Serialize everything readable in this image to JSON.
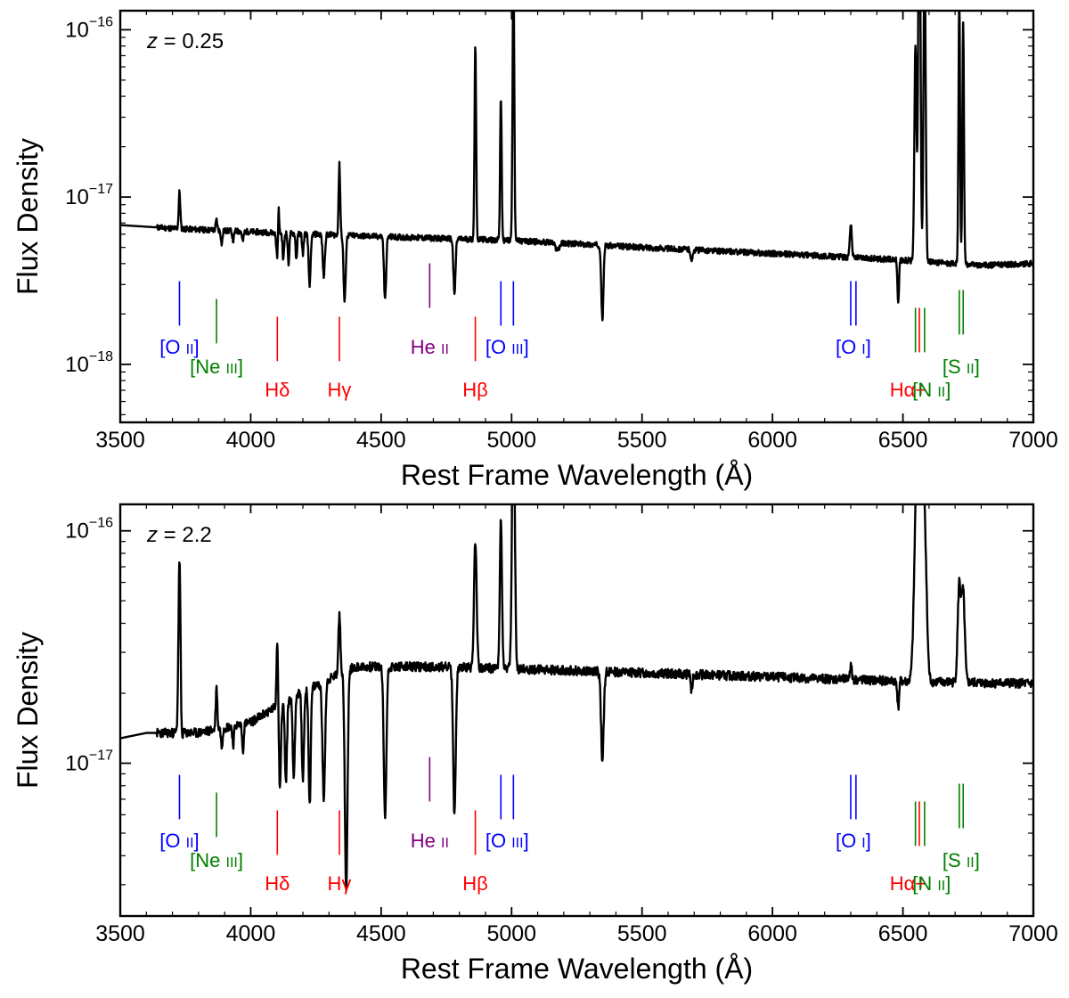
{
  "chart_data": [
    {
      "type": "line",
      "annotation": {
        "var": "z",
        "eq": " = 0.25"
      },
      "xlabel": "Rest Frame Wavelength (Å)",
      "ylabel": "Flux Density",
      "xlim": [
        3500,
        7000
      ],
      "ylim": [
        4.5e-19,
        1.3e-16
      ],
      "yscale": "log",
      "xticks": [
        3500,
        4000,
        4500,
        5000,
        5500,
        6000,
        6500,
        7000
      ],
      "yticks": [
        {
          "value": 1e-16,
          "base": "10",
          "exp": "−16"
        },
        {
          "value": 1e-17,
          "base": "10",
          "exp": "−17"
        },
        {
          "value": 1e-18,
          "base": "10",
          "exp": "−18"
        }
      ],
      "continuum": [
        [
          3500,
          6.8e-18
        ],
        [
          3700,
          6.5e-18
        ],
        [
          4000,
          6.2e-18
        ],
        [
          4500,
          5.8e-18
        ],
        [
          5000,
          5.5e-18
        ],
        [
          5500,
          5e-18
        ],
        [
          6000,
          4.6e-18
        ],
        [
          6500,
          4.2e-18
        ],
        [
          6800,
          3.9e-18
        ],
        [
          7000,
          4e-18
        ]
      ],
      "features": [
        {
          "x": 3727,
          "a": 0.22,
          "w": 3
        },
        {
          "x": 3869,
          "a": 0.06,
          "w": 3
        },
        {
          "x": 3889,
          "a": -0.08,
          "w": 3
        },
        {
          "x": 3933,
          "a": -0.06,
          "w": 3
        },
        {
          "x": 3970,
          "a": -0.06,
          "w": 3
        },
        {
          "x": 4102,
          "a": -0.14,
          "w": 4
        },
        {
          "x": 4107,
          "a": 0.2,
          "w": 2
        },
        {
          "x": 4125,
          "a": -0.16,
          "w": 3
        },
        {
          "x": 4145,
          "a": -0.18,
          "w": 3
        },
        {
          "x": 4175,
          "a": -0.15,
          "w": 3
        },
        {
          "x": 4200,
          "a": -0.12,
          "w": 3
        },
        {
          "x": 4226,
          "a": -0.3,
          "w": 4
        },
        {
          "x": 4280,
          "a": -0.25,
          "w": 4
        },
        {
          "x": 4340,
          "a": 0.42,
          "w": 3
        },
        {
          "x": 4360,
          "a": -0.4,
          "w": 4
        },
        {
          "x": 4515,
          "a": -0.38,
          "w": 4
        },
        {
          "x": 4781,
          "a": -0.33,
          "w": 4
        },
        {
          "x": 4861,
          "a": 1.18,
          "w": 3
        },
        {
          "x": 4959,
          "a": 0.85,
          "w": 3
        },
        {
          "x": 5007,
          "a": 1.67,
          "w": 3.2
        },
        {
          "x": 5175,
          "a": -0.04,
          "w": 8
        },
        {
          "x": 5348,
          "a": -0.45,
          "w": 4
        },
        {
          "x": 5690,
          "a": -0.08,
          "w": 3
        },
        {
          "x": 6300,
          "a": 0.2,
          "w": 4
        },
        {
          "x": 6482,
          "a": -0.25,
          "w": 3
        },
        {
          "x": 6548,
          "a": 1.3,
          "w": 4
        },
        {
          "x": 6563,
          "a": 2.7,
          "w": 4
        },
        {
          "x": 6583,
          "a": 1.95,
          "w": 4
        },
        {
          "x": 6716,
          "a": 1.6,
          "w": 3
        },
        {
          "x": 6731,
          "a": 1.45,
          "w": 3
        }
      ],
      "noise": 0.035,
      "seed": 11
    },
    {
      "type": "line",
      "annotation": {
        "var": "z",
        "eq": " = 2.2"
      },
      "xlabel": "Rest Frame Wavelength (Å)",
      "ylabel": "Flux Density",
      "xlim": [
        3500,
        7000
      ],
      "ylim": [
        2.2e-18,
        1.3e-16
      ],
      "yscale": "log",
      "xticks": [
        3500,
        4000,
        4500,
        5000,
        5500,
        6000,
        6500,
        7000
      ],
      "yticks": [
        {
          "value": 1e-16,
          "base": "10",
          "exp": "−16"
        },
        {
          "value": 1e-17,
          "base": "10",
          "exp": "−17"
        }
      ],
      "continuum": [
        [
          3500,
          1.28e-17
        ],
        [
          3600,
          1.35e-17
        ],
        [
          3800,
          1.35e-17
        ],
        [
          4000,
          1.5e-17
        ],
        [
          4150,
          1.9e-17
        ],
        [
          4300,
          2.3e-17
        ],
        [
          4400,
          2.6e-17
        ],
        [
          4700,
          2.6e-17
        ],
        [
          5000,
          2.55e-17
        ],
        [
          5500,
          2.45e-17
        ],
        [
          6000,
          2.35e-17
        ],
        [
          6500,
          2.25e-17
        ],
        [
          7000,
          2.2e-17
        ]
      ],
      "features": [
        {
          "x": 3727,
          "a": 0.75,
          "w": 4
        },
        {
          "x": 3734,
          "a": -0.06,
          "w": 3
        },
        {
          "x": 3869,
          "a": 0.18,
          "w": 3
        },
        {
          "x": 3889,
          "a": -0.08,
          "w": 3
        },
        {
          "x": 3933,
          "a": -0.08,
          "w": 3
        },
        {
          "x": 3970,
          "a": -0.12,
          "w": 3
        },
        {
          "x": 4102,
          "a": 0.3,
          "w": 3
        },
        {
          "x": 4112,
          "a": -0.35,
          "w": 4
        },
        {
          "x": 4135,
          "a": -0.35,
          "w": 4
        },
        {
          "x": 4165,
          "a": -0.35,
          "w": 4
        },
        {
          "x": 4200,
          "a": -0.38,
          "w": 4
        },
        {
          "x": 4226,
          "a": -0.5,
          "w": 4
        },
        {
          "x": 4280,
          "a": -0.5,
          "w": 5
        },
        {
          "x": 4340,
          "a": 0.25,
          "w": 4
        },
        {
          "x": 4366,
          "a": -0.95,
          "w": 5
        },
        {
          "x": 4515,
          "a": -0.65,
          "w": 5
        },
        {
          "x": 4781,
          "a": -0.63,
          "w": 5
        },
        {
          "x": 4861,
          "a": 0.55,
          "w": 5
        },
        {
          "x": 4959,
          "a": 0.65,
          "w": 4
        },
        {
          "x": 5007,
          "a": 1.25,
          "w": 5
        },
        {
          "x": 5348,
          "a": -0.38,
          "w": 5
        },
        {
          "x": 5690,
          "a": -0.08,
          "w": 3
        },
        {
          "x": 6300,
          "a": 0.06,
          "w": 4
        },
        {
          "x": 6482,
          "a": -0.12,
          "w": 3
        },
        {
          "x": 6548,
          "a": 0.35,
          "w": 8
        },
        {
          "x": 6563,
          "a": 1.3,
          "w": 10
        },
        {
          "x": 6583,
          "a": 0.6,
          "w": 8
        },
        {
          "x": 6716,
          "a": 0.42,
          "w": 6
        },
        {
          "x": 6731,
          "a": 0.38,
          "w": 6
        }
      ],
      "noise": 0.04,
      "seed": 23
    }
  ],
  "line_markers": [
    {
      "name": "[O II]",
      "color": "#0000ff",
      "xs": [
        3727
      ],
      "y0": 0.0,
      "y1": 1.0,
      "label_parts": [
        "[O ",
        "II",
        "]"
      ],
      "label_x": 3727,
      "label_row": 0
    },
    {
      "name": "[Ne III]",
      "color": "#008000",
      "xs": [
        3869
      ],
      "y0": -0.4,
      "y1": 0.6,
      "label_parts": [
        "[Ne ",
        "III",
        "]"
      ],
      "label_x": 3869,
      "label_row": 1
    },
    {
      "name": "Hδ",
      "color": "#ff0000",
      "xs": [
        4102
      ],
      "y0": -0.8,
      "y1": 0.2,
      "label_parts": [
        "Hδ"
      ],
      "label_x": 4102,
      "label_row": 2
    },
    {
      "name": "Hγ",
      "color": "#ff0000",
      "xs": [
        4340
      ],
      "y0": -0.8,
      "y1": 0.2,
      "label_parts": [
        "Hγ"
      ],
      "label_x": 4340,
      "label_row": 2
    },
    {
      "name": "He II",
      "color": "#800080",
      "xs": [
        4686
      ],
      "y0": 0.4,
      "y1": 1.4,
      "label_parts": [
        "He ",
        "II"
      ],
      "label_x": 4686,
      "label_row": 3
    },
    {
      "name": "Hβ",
      "color": "#ff0000",
      "xs": [
        4861
      ],
      "y0": -0.8,
      "y1": 0.2,
      "label_parts": [
        "Hβ"
      ],
      "label_x": 4861,
      "label_row": 2
    },
    {
      "name": "[O III]",
      "color": "#0000ff",
      "xs": [
        4959,
        5007
      ],
      "y0": 0.0,
      "y1": 1.0,
      "label_parts": [
        "[O ",
        "III",
        "]"
      ],
      "label_x": 4983,
      "label_row": 0
    },
    {
      "name": "[O I]",
      "color": "#0000ff",
      "xs": [
        6300,
        6320
      ],
      "y0": 0.0,
      "y1": 1.0,
      "label_parts": [
        "[O ",
        "I",
        "]"
      ],
      "label_x": 6310,
      "label_row": 0
    },
    {
      "name": "Hα",
      "color": "#ff0000",
      "xs": [
        6563
      ],
      "y0": -0.6,
      "y1": 0.4,
      "label_parts": [
        "Hα+"
      ],
      "label_x": 6520,
      "label_row": 2
    },
    {
      "name": "[N II]",
      "color": "#008000",
      "xs": [
        6548,
        6583
      ],
      "y0": -0.6,
      "y1": 0.4,
      "label_parts": [
        "[N ",
        "II",
        "]"
      ],
      "label_x": 6610,
      "label_row": 2
    },
    {
      "name": "[S II]",
      "color": "#008000",
      "xs": [
        6716,
        6731
      ],
      "y0": -0.2,
      "y1": 0.8,
      "label_parts": [
        "[S ",
        "II",
        "]"
      ],
      "label_x": 6723,
      "label_row": 1
    }
  ]
}
